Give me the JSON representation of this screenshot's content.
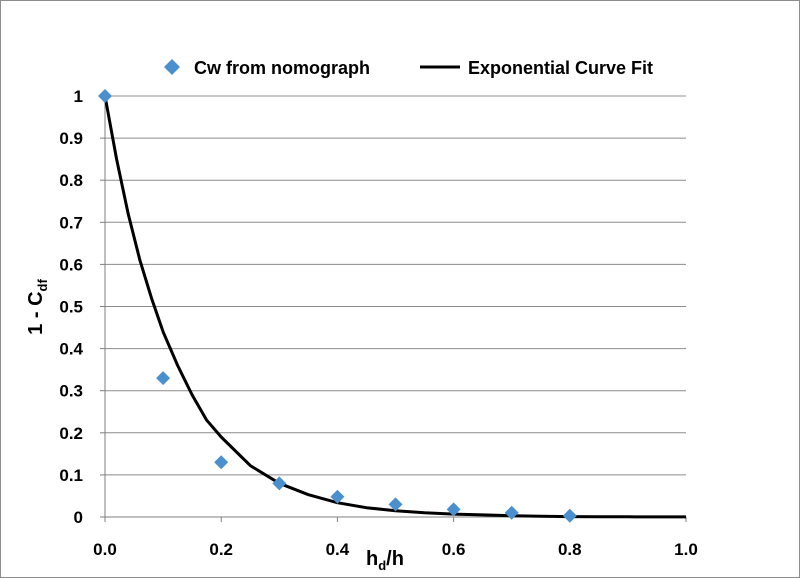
{
  "chart_data": {
    "type": "scatter",
    "xlabel": {
      "main": "h",
      "sub": "d",
      "tail": "/h"
    },
    "ylabel": {
      "main": "1 - C",
      "sub": "df"
    },
    "xlim": [
      0.0,
      1.0
    ],
    "ylim": [
      0,
      1
    ],
    "x_ticks": [
      "0.0",
      "0.2",
      "0.4",
      "0.6",
      "0.8",
      "1.0"
    ],
    "y_ticks": [
      "0",
      "0.1",
      "0.2",
      "0.3",
      "0.4",
      "0.5",
      "0.6",
      "0.7",
      "0.8",
      "0.9",
      "1"
    ],
    "grid": "horizontal",
    "legend_position": "top",
    "series": [
      {
        "name": "Cw from nomograph",
        "kind": "markers",
        "marker": "diamond",
        "color": "#4a90cf",
        "x": [
          0.0,
          0.1,
          0.2,
          0.3,
          0.4,
          0.5,
          0.6,
          0.7,
          0.8
        ],
        "y": [
          1.0,
          0.33,
          0.13,
          0.08,
          0.048,
          0.03,
          0.018,
          0.01,
          0.003
        ]
      },
      {
        "name": "Exponential Curve Fit",
        "kind": "line",
        "color": "#000000",
        "x": [
          0.0,
          0.02,
          0.04,
          0.06,
          0.08,
          0.1,
          0.125,
          0.15,
          0.175,
          0.2,
          0.25,
          0.3,
          0.35,
          0.4,
          0.45,
          0.5,
          0.55,
          0.6,
          0.65,
          0.7,
          0.75,
          0.8,
          0.85,
          0.9,
          0.95,
          1.0
        ],
        "y": [
          1.0,
          0.85,
          0.72,
          0.61,
          0.52,
          0.44,
          0.36,
          0.29,
          0.23,
          0.19,
          0.122,
          0.08,
          0.053,
          0.034,
          0.022,
          0.015,
          0.01,
          0.007,
          0.005,
          0.003,
          0.002,
          0.001,
          0.0008,
          0.0005,
          0.0003,
          0.0002
        ]
      }
    ]
  }
}
